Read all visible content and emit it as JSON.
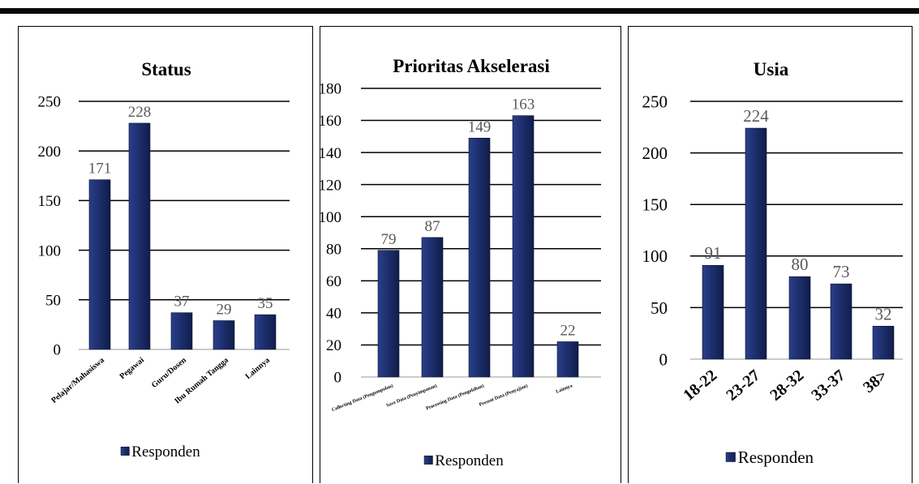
{
  "chart_data": [
    {
      "type": "bar",
      "title": "Status",
      "categories": [
        "Pelajar/Mahasiswa",
        "Pegawai",
        "Guru/Dosen",
        "Ibu Rumah Tangga",
        "Lainnya"
      ],
      "series": [
        {
          "name": "Responden",
          "values": [
            171,
            228,
            37,
            29,
            35
          ]
        }
      ],
      "ylim": [
        0,
        250
      ],
      "yticks": [
        0,
        50,
        100,
        150,
        200,
        250
      ],
      "grid": true,
      "legend_position": "bottom",
      "bar_color": "#1c2d6b"
    },
    {
      "type": "bar",
      "title": "Prioritas Akselerasi",
      "categories": [
        "Collecting Data (Pengumpulan)",
        "Save Data (Penyimpanan)",
        "Processing Data (Pengolahan)",
        "Present Data (Penyajian)",
        "Lainnya"
      ],
      "series": [
        {
          "name": "Responden",
          "values": [
            79,
            87,
            149,
            163,
            22
          ]
        }
      ],
      "ylim": [
        0,
        180
      ],
      "yticks": [
        0,
        20,
        40,
        60,
        80,
        100,
        120,
        140,
        160,
        180
      ],
      "grid": true,
      "legend_position": "bottom",
      "bar_color": "#1c2d6b"
    },
    {
      "type": "bar",
      "title": "Usia",
      "categories": [
        "18-22",
        "23-27",
        "28-32",
        "33-37",
        "38>"
      ],
      "series": [
        {
          "name": "Responden",
          "values": [
            91,
            224,
            80,
            73,
            32
          ]
        }
      ],
      "ylim": [
        0,
        250
      ],
      "yticks": [
        0,
        50,
        100,
        150,
        200,
        250
      ],
      "grid": true,
      "legend_position": "bottom",
      "bar_color": "#1c2d6b"
    }
  ]
}
